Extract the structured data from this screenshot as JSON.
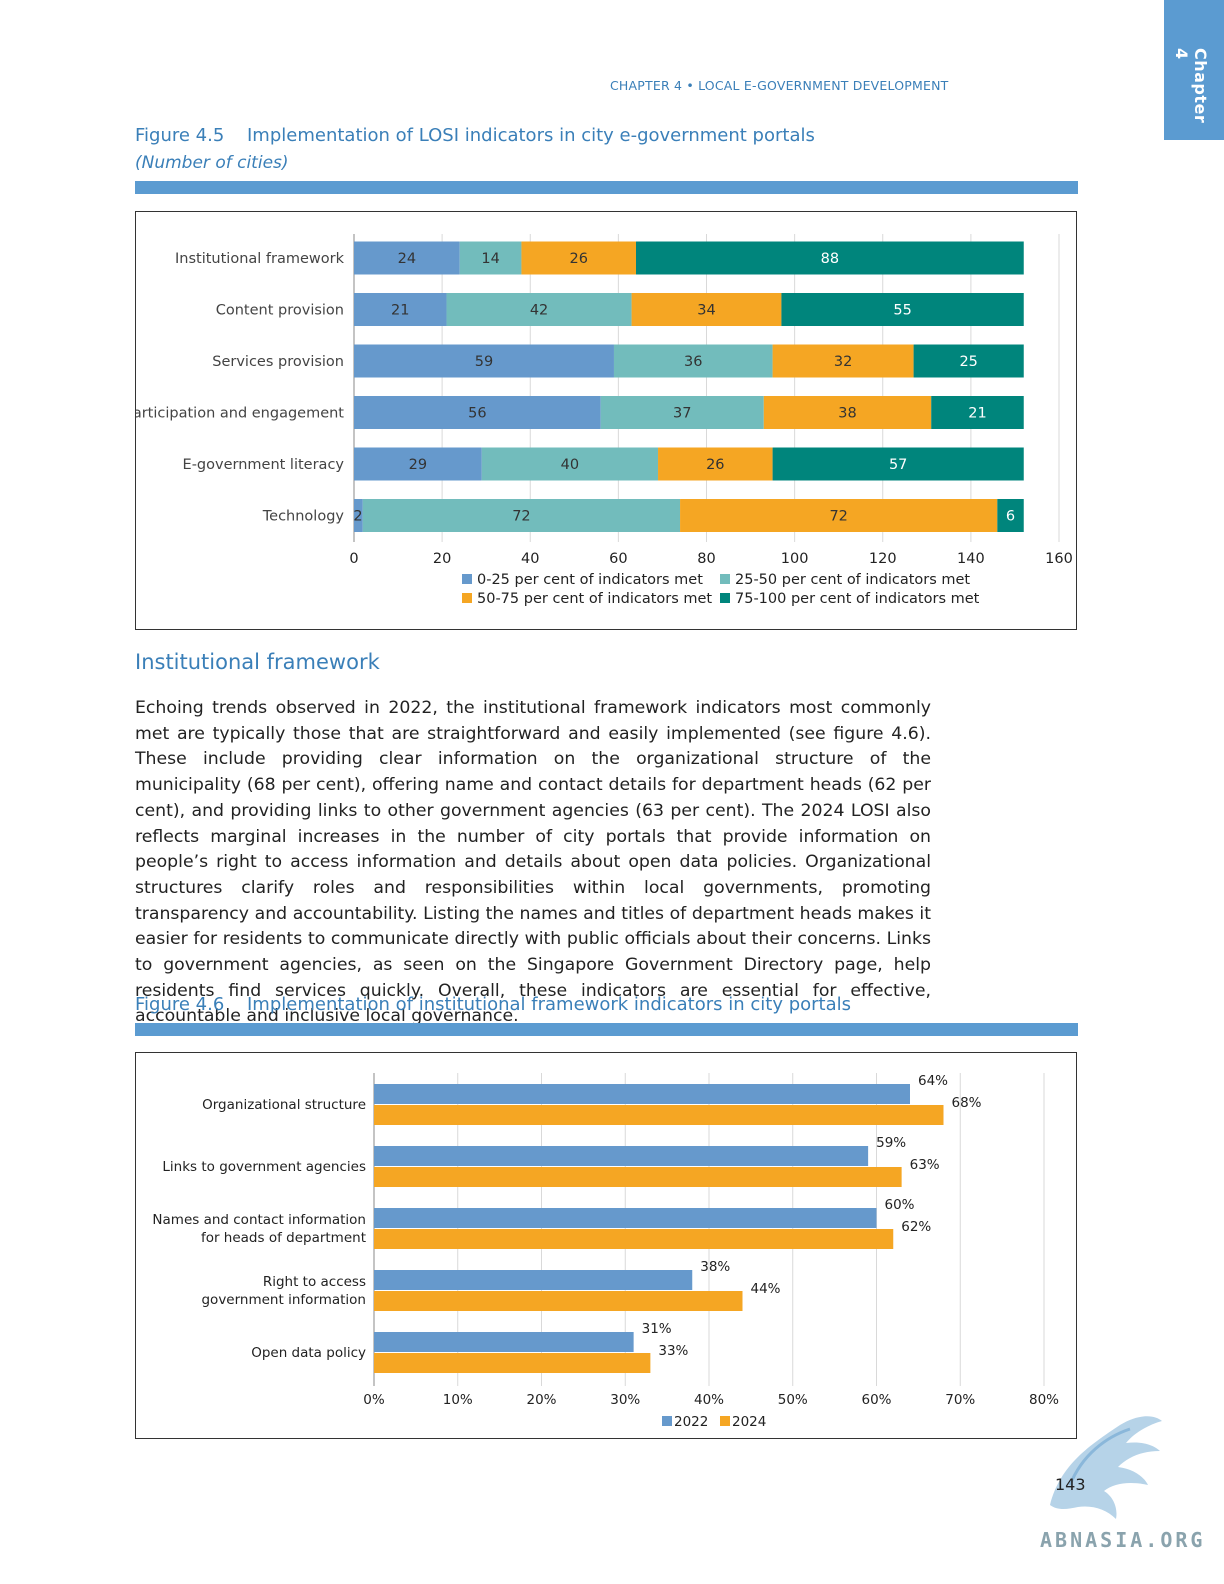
{
  "header": {
    "running_title": "CHAPTER 4 • LOCAL E-GOVERNMENT DEVELOPMENT",
    "chapter_tab": "Chapter 4"
  },
  "figure_4_5": {
    "number": "Figure 4.5",
    "title": "Implementation of LOSI indicators in city e-government portals",
    "subtitle": "(Number of cities)"
  },
  "figure_4_6": {
    "number": "Figure 4.6",
    "title": "Implementation of institutional framework indicators in city portals"
  },
  "section": {
    "heading": "Institutional framework",
    "paragraph": "Echoing trends observed in 2022, the institutional framework indicators most commonly met are typically those that are straightforward and easily implemented (see figure 4.6). These include providing clear information on the organizational structure of the municipality (68 per cent), offering name and contact details for department heads (62 per cent), and providing links to other government agencies (63 per cent). The 2024 LOSI also reflects marginal increases in the number of city portals that provide information on people’s right to access information and details about open data policies. Organizational structures clarify roles and responsibilities within local governments, promoting transparency and accountability. Listing the names and titles of department heads makes it easier for residents to communicate directly with public officials about their concerns. Links to government agencies, as seen on the Singapore Government Directory page, help residents find services quickly. Overall, these indicators are essential for effective, accountable and inclusive local governance."
  },
  "footer": {
    "page_number": "143",
    "watermark": "ABNASIA.ORG"
  },
  "chart_data": [
    {
      "type": "bar",
      "orientation": "horizontal",
      "stacked": true,
      "categories": [
        "Institutional framework",
        "Content provision",
        "Services provision",
        "Participation and engagement",
        "E-government literacy",
        "Technology"
      ],
      "series": [
        {
          "name": "0-25 per cent of indicators met",
          "values": [
            24,
            21,
            59,
            56,
            29,
            2
          ],
          "color": "#6699cc"
        },
        {
          "name": "25-50 per cent of indicators met",
          "values": [
            14,
            42,
            36,
            37,
            40,
            72
          ],
          "color": "#72bcbc"
        },
        {
          "name": "50-75 per cent of indicators met",
          "values": [
            26,
            34,
            32,
            38,
            26,
            72
          ],
          "color": "#f5a623"
        },
        {
          "name": "75-100 per cent of indicators met",
          "values": [
            88,
            55,
            25,
            21,
            57,
            6
          ],
          "color": "#00857c"
        }
      ],
      "xlim": [
        0,
        160
      ],
      "xticks": [
        0,
        20,
        40,
        60,
        80,
        100,
        120,
        140,
        160
      ],
      "grid": true,
      "legend": "bottom"
    },
    {
      "type": "bar",
      "orientation": "horizontal",
      "categories": [
        [
          "Organizational structure"
        ],
        [
          "Links to government agencies"
        ],
        [
          "Names and contact information",
          "for heads of department"
        ],
        [
          "Right to access",
          "government information"
        ],
        [
          "Open data policy"
        ]
      ],
      "series": [
        {
          "name": "2022",
          "values": [
            64,
            59,
            60,
            38,
            31
          ],
          "color": "#6699cc"
        },
        {
          "name": "2024",
          "values": [
            68,
            63,
            62,
            44,
            33
          ],
          "color": "#f5a623"
        }
      ],
      "value_suffix": "%",
      "xlim": [
        0,
        80
      ],
      "xticks": [
        0,
        10,
        20,
        30,
        40,
        50,
        60,
        70,
        80
      ],
      "tick_suffix": "%",
      "grid": true,
      "legend": "bottom"
    }
  ]
}
